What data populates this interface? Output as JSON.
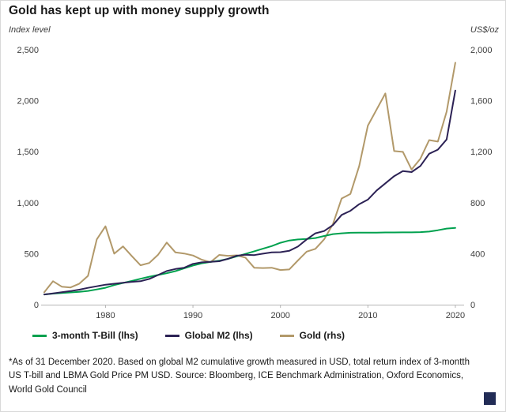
{
  "footnote": "*As of 31 December 2020. Based on global M2 cumulative growth measured in USD, total return index of 3-montth US T-bill and LBMA Gold Price PM USD. Source: Bloomberg, ICE Benchmark Administration, Oxford Economics, World Gold Council",
  "colors": {
    "tbill_green": "#00a14e",
    "m2_purple": "#2c2255",
    "gold_tan": "#b2996a",
    "axis_line": "#b5b5b5",
    "axis_text": "#3d3d3d"
  },
  "chart_data": {
    "type": "line",
    "title": "Gold has kept up with money supply growth",
    "ylabel_left": "Index level",
    "ylabel_right": "US$/oz",
    "x_range": [
      1973,
      2021
    ],
    "ylim_left": [
      0,
      2500
    ],
    "ylim_right": [
      0,
      2000
    ],
    "grid": false,
    "legend_position": "bottom",
    "x_ticks": [
      1980,
      1990,
      2000,
      2010,
      2020
    ],
    "left_ticks": [
      {
        "v": 2500,
        "label": "2,500"
      },
      {
        "v": 2000,
        "label": "2,000"
      },
      {
        "v": 1500,
        "label": "1,500"
      },
      {
        "v": 1000,
        "label": "1,000"
      },
      {
        "v": 500,
        "label": "500"
      },
      {
        "v": 0,
        "label": "0"
      }
    ],
    "right_ticks": [
      {
        "v": 2000,
        "label": "2,000"
      },
      {
        "v": 1600,
        "label": "1,600"
      },
      {
        "v": 1200,
        "label": "1,200"
      },
      {
        "v": 800,
        "label": "800"
      },
      {
        "v": 400,
        "label": "400"
      },
      {
        "v": 0,
        "label": "0"
      }
    ],
    "x": [
      1973,
      1974,
      1975,
      1976,
      1977,
      1978,
      1979,
      1980,
      1981,
      1982,
      1983,
      1984,
      1985,
      1986,
      1987,
      1988,
      1989,
      1990,
      1991,
      1992,
      1993,
      1994,
      1995,
      1996,
      1997,
      1998,
      1999,
      2000,
      2001,
      2002,
      2003,
      2004,
      2005,
      2006,
      2007,
      2008,
      2009,
      2010,
      2011,
      2012,
      2013,
      2014,
      2015,
      2016,
      2017,
      2018,
      2019,
      2020
    ],
    "series": [
      {
        "name": "3-month T-Bill (lhs)",
        "axis": "left",
        "color": "#00a14e",
        "values": [
          100,
          108,
          114,
          120,
          126,
          135,
          149,
          166,
          192,
          213,
          232,
          254,
          274,
          291,
          308,
          329,
          357,
          384,
          405,
          419,
          431,
          449,
          474,
          498,
          523,
          549,
          574,
          607,
          629,
          639,
          645,
          653,
          673,
          692,
          700,
          705,
          706,
          707,
          707,
          708,
          708,
          709,
          709,
          711,
          717,
          730,
          746,
          752
        ]
      },
      {
        "name": "Global M2 (lhs)",
        "axis": "left",
        "color": "#2c2255",
        "values": [
          100,
          111,
          122,
          133,
          147,
          165,
          180,
          196,
          205,
          215,
          224,
          230,
          252,
          290,
          330,
          350,
          362,
          400,
          415,
          420,
          426,
          450,
          480,
          490,
          486,
          500,
          512,
          515,
          528,
          570,
          640,
          700,
          722,
          780,
          880,
          920,
          985,
          1030,
          1120,
          1190,
          1260,
          1310,
          1300,
          1360,
          1480,
          1520,
          1620,
          2100
        ]
      },
      {
        "name": "Gold (rhs)",
        "axis": "right",
        "color": "#b2996a",
        "values": [
          97,
          184,
          141,
          135,
          165,
          226,
          512,
          615,
          400,
          457,
          382,
          309,
          327,
          391,
          487,
          410,
          401,
          386,
          353,
          333,
          390,
          383,
          387,
          369,
          290,
          287,
          290,
          272,
          276,
          347,
          416,
          438,
          513,
          632,
          833,
          869,
          1087,
          1405,
          1531,
          1657,
          1205,
          1199,
          1060,
          1145,
          1291,
          1279,
          1514,
          1898
        ]
      }
    ]
  }
}
